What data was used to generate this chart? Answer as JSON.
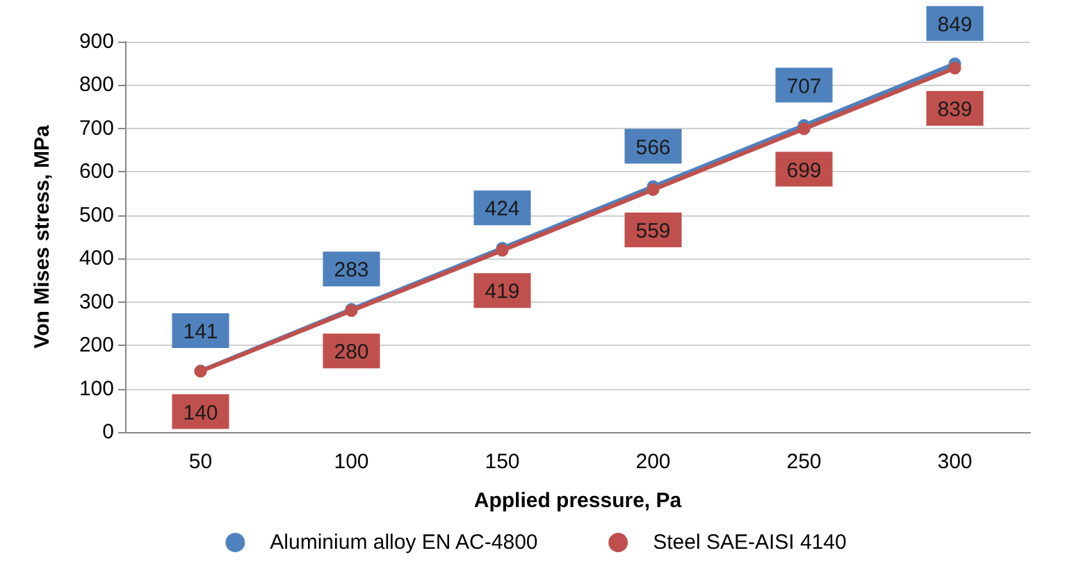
{
  "chart_data": {
    "type": "line",
    "xlabel": "Applied pressure, Pa",
    "ylabel": "Von Mises stress, MPa",
    "categories": [
      "50",
      "100",
      "150",
      "200",
      "250",
      "300"
    ],
    "series": [
      {
        "name": "Aluminium alloy EN AC-4800",
        "color": "#4f81bd",
        "values": [
          141,
          283,
          424,
          566,
          707,
          849
        ]
      },
      {
        "name": "Steel SAE-AISI 4140",
        "color": "#c0504d",
        "values": [
          140,
          280,
          419,
          559,
          699,
          839
        ]
      }
    ],
    "ylim": [
      0,
      900
    ],
    "yticks": [
      0,
      100,
      200,
      300,
      400,
      500,
      600,
      700,
      800,
      900
    ],
    "grid": "y",
    "legend": "bottom",
    "marker": "circle",
    "line_style": "solid",
    "data_labels": true
  }
}
